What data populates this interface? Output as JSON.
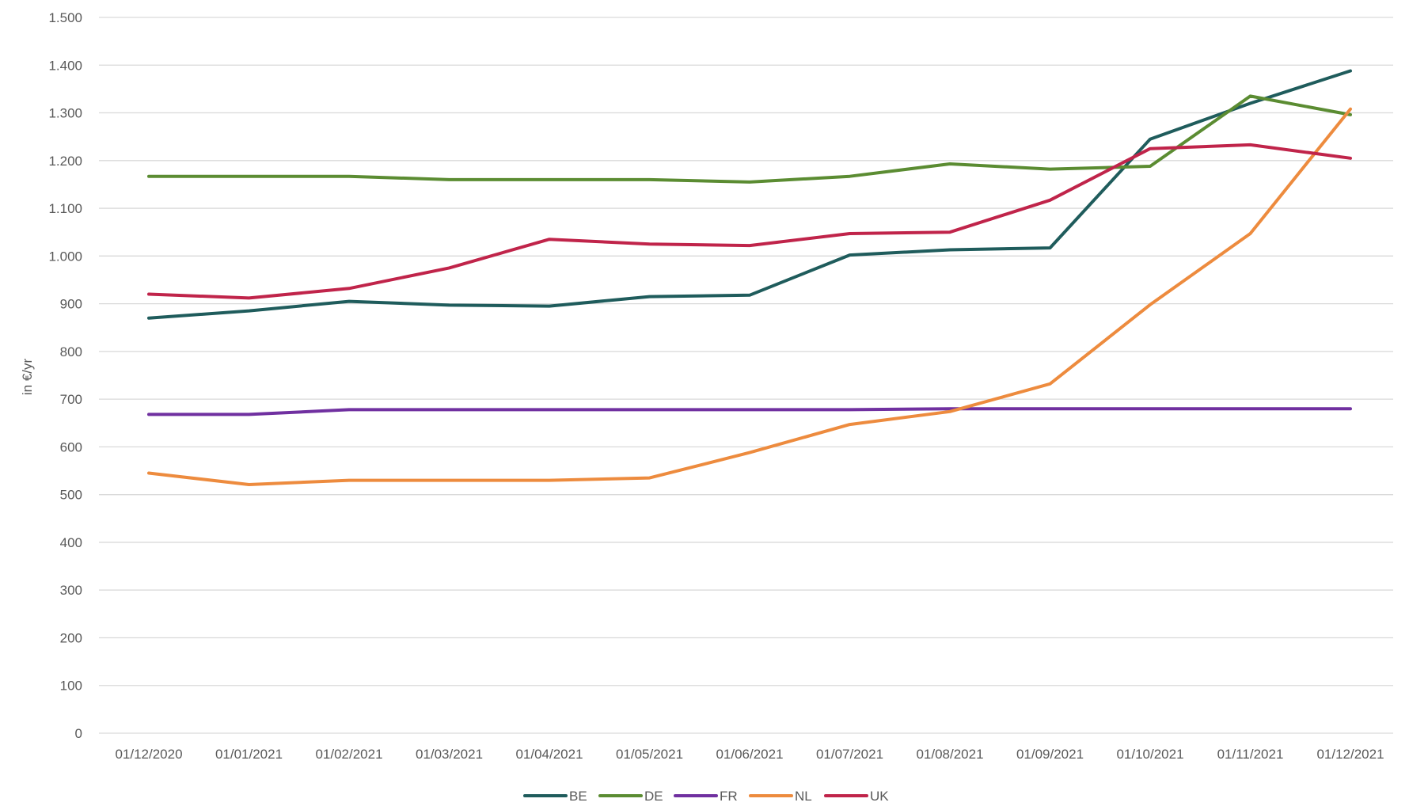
{
  "chart_data": {
    "type": "line",
    "title": "",
    "xlabel": "",
    "ylabel": "in €/yr",
    "ylim": [
      0,
      1500
    ],
    "y_ticks": [
      0,
      100,
      200,
      300,
      400,
      500,
      600,
      700,
      800,
      900,
      1000,
      1100,
      1200,
      1300,
      1400,
      1500
    ],
    "y_tick_labels": [
      "0",
      "100",
      "200",
      "300",
      "400",
      "500",
      "600",
      "700",
      "800",
      "900",
      "1.000",
      "1.100",
      "1.200",
      "1.300",
      "1.400",
      "1.500"
    ],
    "categories": [
      "01/12/2020",
      "01/01/2021",
      "01/02/2021",
      "01/03/2021",
      "01/04/2021",
      "01/05/2021",
      "01/06/2021",
      "01/07/2021",
      "01/08/2021",
      "01/09/2021",
      "01/10/2021",
      "01/11/2021",
      "01/12/2021"
    ],
    "grid": "horizontal",
    "legend_position": "bottom",
    "series": [
      {
        "name": "BE",
        "color": "#1f5c5c",
        "values": [
          870,
          885,
          905,
          897,
          895,
          915,
          918,
          1002,
          1013,
          1017,
          1245,
          1320,
          1388
        ]
      },
      {
        "name": "DE",
        "color": "#5b8c32",
        "values": [
          1167,
          1167,
          1167,
          1160,
          1160,
          1160,
          1155,
          1167,
          1193,
          1182,
          1188,
          1335,
          1296
        ]
      },
      {
        "name": "FR",
        "color": "#7030a0",
        "values": [
          668,
          668,
          678,
          678,
          678,
          678,
          678,
          678,
          680,
          680,
          680,
          680,
          680
        ]
      },
      {
        "name": "NL",
        "color": "#ed8b3e",
        "values": [
          545,
          521,
          530,
          530,
          530,
          535,
          588,
          647,
          674,
          732,
          898,
          1047,
          1308
        ]
      },
      {
        "name": "UK",
        "color": "#c0244a",
        "values": [
          920,
          912,
          932,
          975,
          1035,
          1025,
          1022,
          1047,
          1050,
          1117,
          1225,
          1233,
          1205
        ]
      }
    ]
  }
}
